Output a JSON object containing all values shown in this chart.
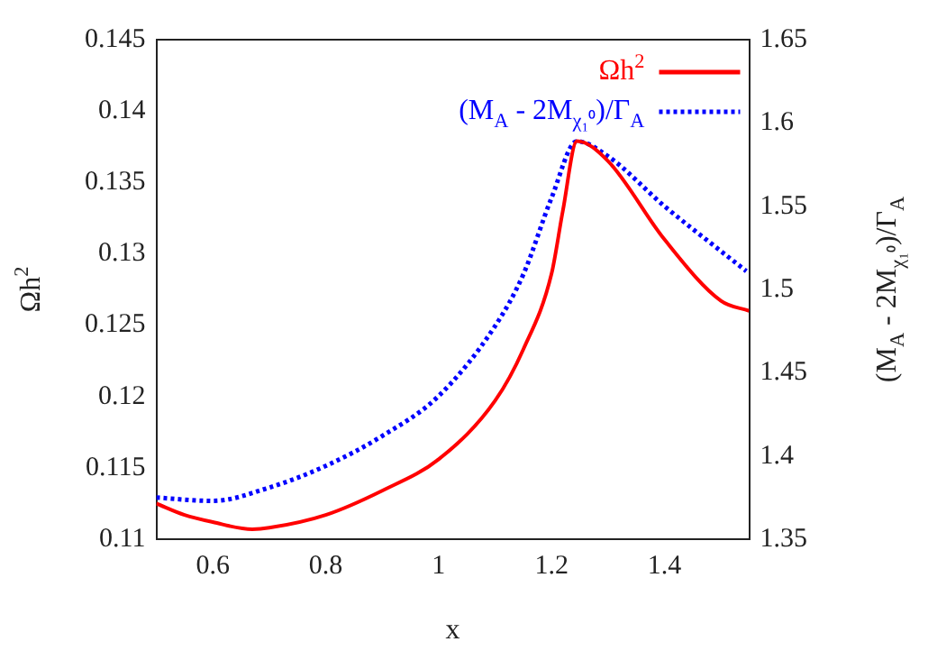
{
  "chart_data": {
    "type": "line",
    "xlabel": "x",
    "ylabel": "Ωh$^{2}$",
    "y2label": "(M$_{A}$ - 2M$_{χ₁⁰}$)/Γ$_{A}$",
    "xlim": [
      0.5,
      1.55
    ],
    "xticks": [
      0.6,
      0.8,
      1,
      1.2,
      1.4
    ],
    "ylim": [
      0.11,
      0.145
    ],
    "yticks": [
      0.11,
      0.115,
      0.12,
      0.125,
      0.13,
      0.135,
      0.14,
      0.145
    ],
    "y2lim": [
      1.35,
      1.65
    ],
    "y2ticks": [
      1.35,
      1.4,
      1.45,
      1.5,
      1.55,
      1.6,
      1.65
    ],
    "grid": false,
    "legend": "top right",
    "marker": "none",
    "series": [
      {
        "name": "Ωh$^{2}$",
        "color": "#ff0000",
        "line_style": "solid",
        "x": [
          0.5,
          0.55,
          0.6,
          0.67,
          0.7,
          0.8,
          0.9,
          1.0,
          1.1,
          1.15,
          1.2,
          1.22,
          1.245,
          1.3,
          1.4,
          1.5,
          1.55
        ],
        "values": [
          0.1125,
          0.1117,
          0.1112,
          0.1107,
          0.1108,
          0.1117,
          0.1134,
          0.1156,
          0.1197,
          0.1233,
          0.1286,
          0.133,
          0.1379,
          0.1365,
          0.131,
          0.1267,
          0.126
        ]
      },
      {
        "name": "(M$_{A}$ - 2M$_{χ₁⁰}$)/Γ$_{A}$",
        "color": "#0000ff",
        "line_style": "dotted",
        "axis": "y2",
        "x": [
          0.5,
          0.6,
          0.7,
          0.8,
          0.9,
          1.0,
          1.1,
          1.15,
          1.2,
          1.245,
          1.3,
          1.4,
          1.5,
          1.545
        ],
        "values": [
          1.375,
          1.373,
          1.381,
          1.394,
          1.412,
          1.436,
          1.478,
          1.509,
          1.555,
          1.589,
          1.58,
          1.55,
          1.523,
          1.511
        ]
      }
    ]
  }
}
